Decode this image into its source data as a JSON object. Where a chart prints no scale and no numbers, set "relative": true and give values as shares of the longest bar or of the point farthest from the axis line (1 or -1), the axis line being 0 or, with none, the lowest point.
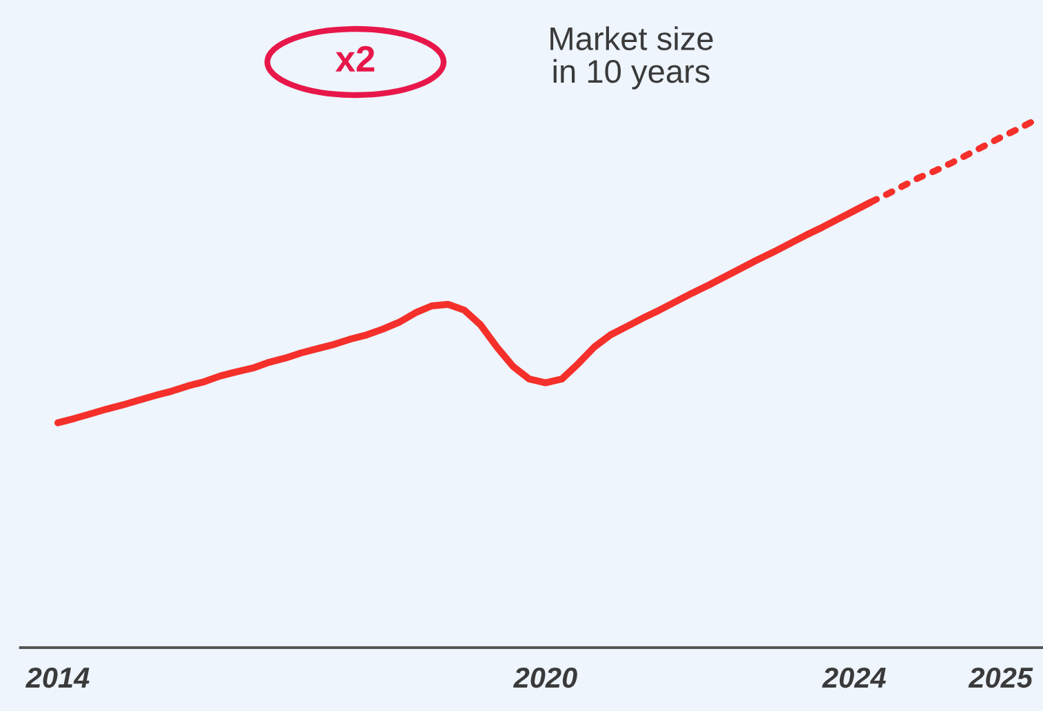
{
  "chart_data": {
    "type": "line",
    "relative": true,
    "categories": [
      "2014",
      null,
      null,
      null,
      null,
      null,
      null,
      null,
      null,
      null,
      null,
      null,
      null,
      null,
      null,
      null,
      null,
      null,
      null,
      null,
      null,
      null,
      null,
      null,
      null,
      null,
      null,
      null,
      null,
      null,
      "2020",
      null,
      null,
      null,
      null,
      null,
      null,
      null,
      null,
      null,
      null,
      null,
      null,
      null,
      null,
      null,
      null,
      null,
      null,
      "2024",
      null,
      null,
      null,
      null,
      null,
      null,
      null,
      null,
      "2025",
      null,
      null
    ],
    "series": [
      {
        "color": "#f5302b",
        "line_style": "solid",
        "values": [
          0.427,
          0.435,
          0.444,
          0.453,
          0.461,
          0.47,
          0.479,
          0.487,
          0.497,
          0.505,
          0.516,
          0.524,
          0.531,
          0.542,
          0.55,
          0.56,
          0.568,
          0.576,
          0.586,
          0.594,
          0.605,
          0.618,
          0.636,
          0.649,
          0.652,
          0.641,
          0.613,
          0.571,
          0.534,
          0.51,
          0.503,
          0.51,
          0.539,
          0.571,
          0.594,
          0.61,
          0.626,
          0.641,
          0.657,
          0.673,
          0.688,
          0.704,
          0.72,
          0.736,
          0.751,
          0.767,
          0.783,
          0.798,
          0.814,
          0.83,
          0.846,
          null,
          null,
          null,
          null,
          null,
          null,
          null,
          null,
          null,
          null
        ]
      },
      {
        "color": "#f5302b",
        "line_style": "dotted",
        "values": [
          null,
          null,
          null,
          null,
          null,
          null,
          null,
          null,
          null,
          null,
          null,
          null,
          null,
          null,
          null,
          null,
          null,
          null,
          null,
          null,
          null,
          null,
          null,
          null,
          null,
          null,
          null,
          null,
          null,
          null,
          null,
          null,
          null,
          null,
          null,
          null,
          null,
          null,
          null,
          null,
          null,
          null,
          null,
          null,
          null,
          null,
          null,
          null,
          null,
          null,
          0.846,
          0.861,
          0.877,
          0.893,
          0.906,
          0.921,
          0.937,
          0.953,
          0.969,
          0.984,
          1
        ]
      }
    ],
    "annotations": [
      "x2",
      "Market size\nin 10 years"
    ],
    "grid": false,
    "legend": false
  }
}
